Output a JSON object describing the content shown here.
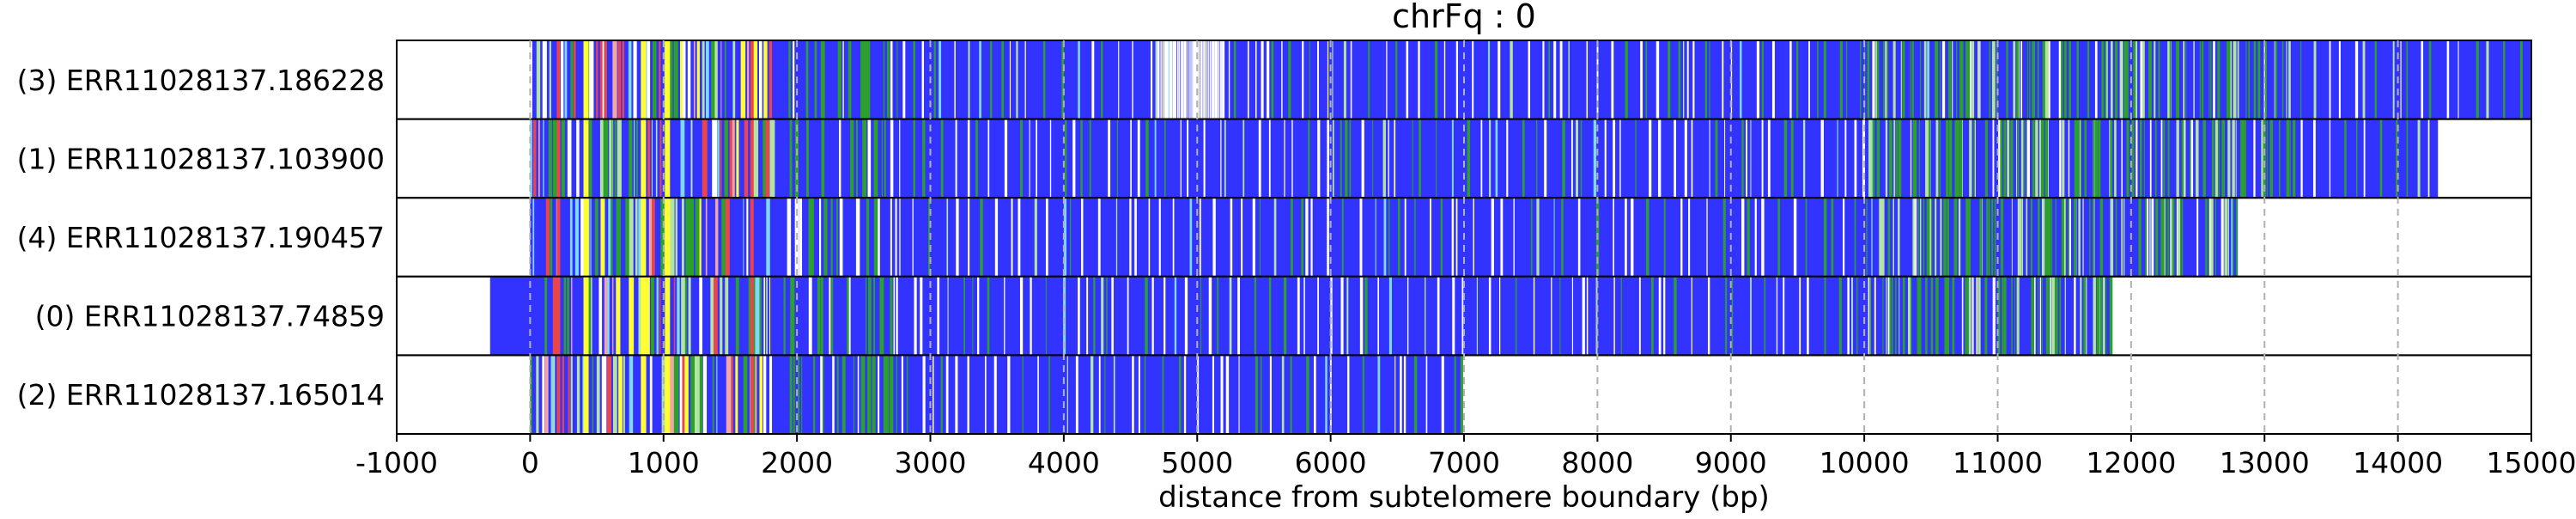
{
  "chart_data": {
    "type": "bar",
    "title": "chrFq : 0",
    "xlabel": "distance from subtelomere boundary (bp)",
    "ylabel": "",
    "xlim": [
      -1000,
      15000
    ],
    "xticks": [
      -1000,
      0,
      1000,
      2000,
      3000,
      4000,
      5000,
      6000,
      7000,
      8000,
      9000,
      10000,
      11000,
      12000,
      13000,
      14000,
      15000
    ],
    "xtick_labels": [
      "-1000",
      "0",
      "1000",
      "2000",
      "3000",
      "4000",
      "5000",
      "6000",
      "7000",
      "8000",
      "9000",
      "10000",
      "11000",
      "12000",
      "13000",
      "14000",
      "15000"
    ],
    "grid": "vertical dashed",
    "colors": {
      "base": "#3333ff",
      "green": "#2ca02c",
      "light_green": "#b5e3a0",
      "yellow": "#ffff33",
      "red": "#e8454d",
      "pink": "#f4a6a6",
      "cyan": "#7fd8ff",
      "white": "#ffffff",
      "grid": "#b0b0b0"
    },
    "reads": [
      {
        "label": "(3) ERR11028137.186228",
        "start": 0,
        "end": 15000
      },
      {
        "label": "(1) ERR11028137.103900",
        "start": 0,
        "end": 14300
      },
      {
        "label": "(4) ERR11028137.190457",
        "start": 0,
        "end": 12800
      },
      {
        "label": "(0) ERR11028137.74859",
        "start": -300,
        "end": 11850
      },
      {
        "label": "(2) ERR11028137.165014",
        "start": 0,
        "end": 6980
      }
    ]
  }
}
